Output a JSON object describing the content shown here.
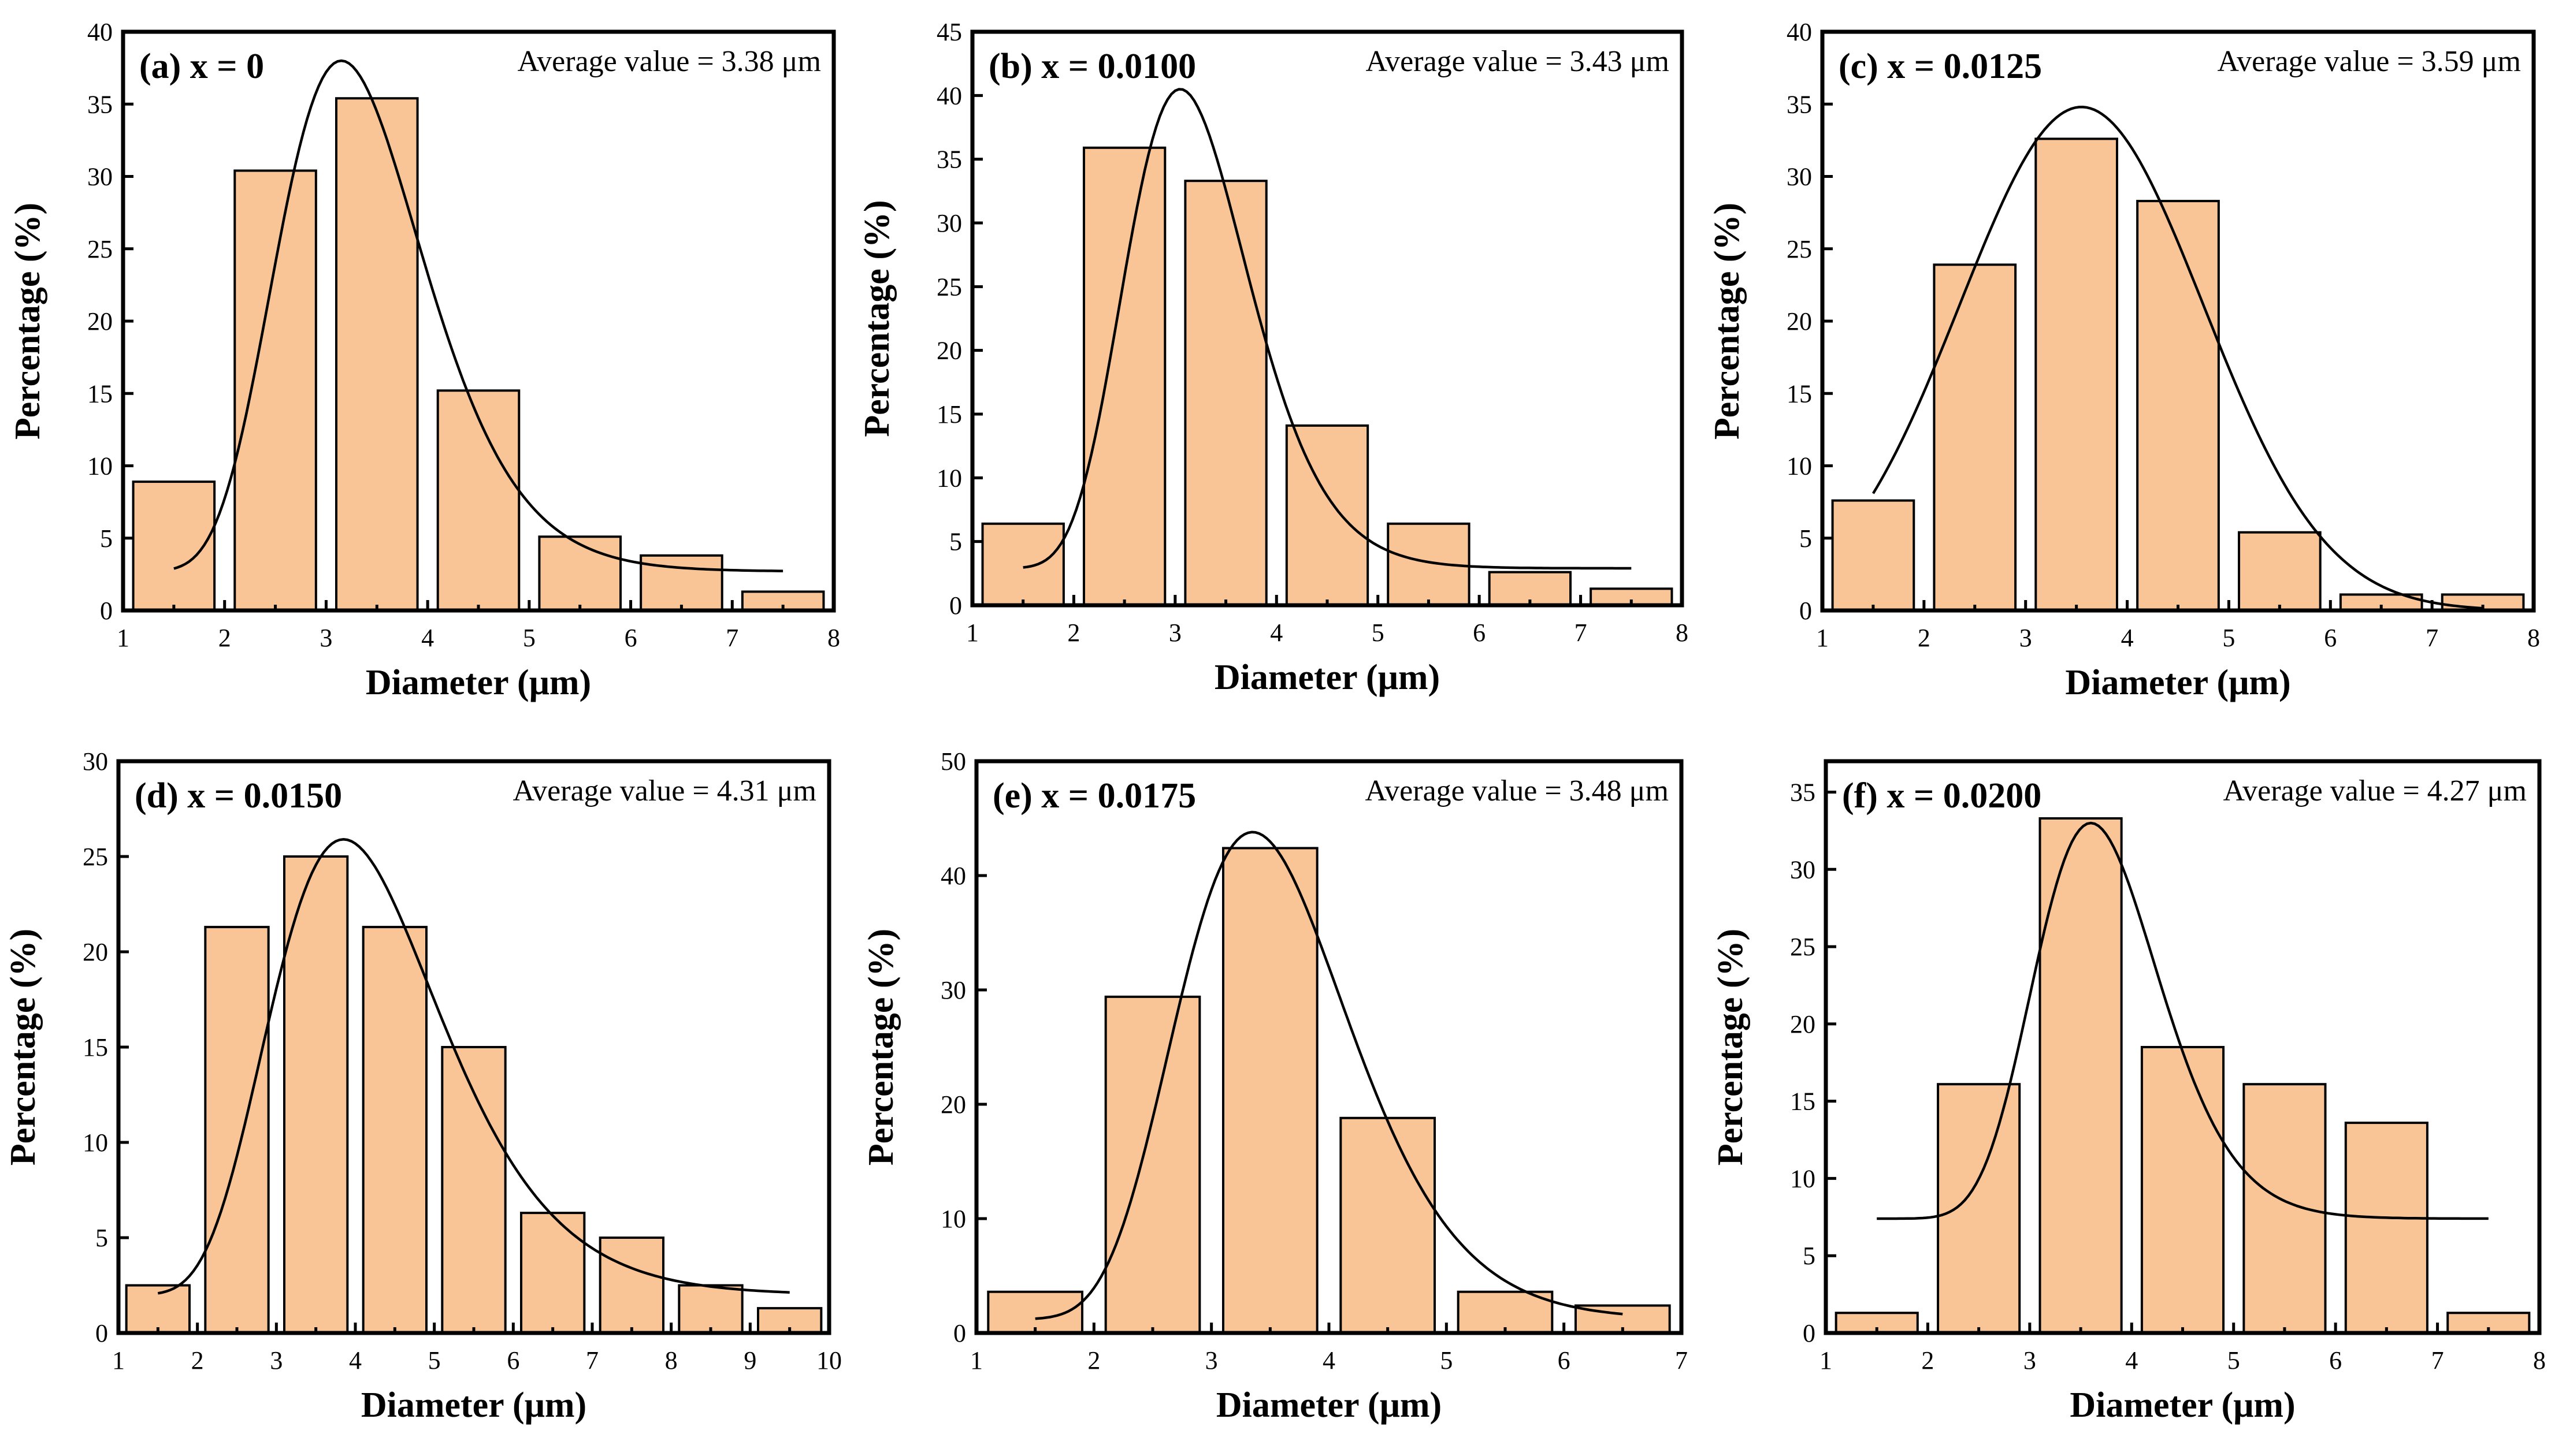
{
  "figure": {
    "bar_color": "#F9C597",
    "line_color": "#000000",
    "background": "#FFFFFF"
  },
  "chart_data": [
    {
      "type": "bar",
      "panel_label": "(a) x = 0",
      "average_text": "Average value = 3.38 μm",
      "xlabel": "Diameter (μm)",
      "ylabel": "Percentage (%)",
      "xlim": [
        1,
        8
      ],
      "ylim": [
        0,
        40
      ],
      "xticks": [
        1,
        2,
        3,
        4,
        5,
        6,
        7,
        8
      ],
      "yticks": [
        0,
        5,
        10,
        15,
        20,
        25,
        30,
        35,
        40
      ],
      "bin_width": 1,
      "bins": [
        [
          1,
          2
        ],
        [
          2,
          3
        ],
        [
          3,
          4
        ],
        [
          4,
          5
        ],
        [
          5,
          6
        ],
        [
          6,
          7
        ],
        [
          7,
          8
        ]
      ],
      "values": [
        8.9,
        30.4,
        35.4,
        15.2,
        5.1,
        3.8,
        1.3
      ],
      "fit_curve": {
        "type": "lognormal",
        "x_range": [
          1.5,
          7.5
        ],
        "baseline": 2.7,
        "peak_x": 3.15,
        "peak_y": 38,
        "sigma": 0.23
      }
    },
    {
      "type": "bar",
      "panel_label": "(b) x = 0.0100",
      "average_text": "Average value = 3.43 μm",
      "xlabel": "Diameter (μm)",
      "ylabel": "Percentage (%)",
      "xlim": [
        1,
        8
      ],
      "ylim": [
        0,
        45
      ],
      "xticks": [
        1,
        2,
        3,
        4,
        5,
        6,
        7,
        8
      ],
      "yticks": [
        0,
        5,
        10,
        15,
        20,
        25,
        30,
        35,
        40,
        45
      ],
      "bin_width": 1,
      "bins": [
        [
          1,
          2
        ],
        [
          2,
          3
        ],
        [
          3,
          4
        ],
        [
          4,
          5
        ],
        [
          5,
          6
        ],
        [
          6,
          7
        ],
        [
          7,
          8
        ]
      ],
      "values": [
        6.4,
        35.9,
        33.3,
        14.1,
        6.4,
        2.6,
        1.3
      ],
      "fit_curve": {
        "type": "lognormal",
        "x_range": [
          1.5,
          7.5
        ],
        "baseline": 2.9,
        "peak_x": 3.05,
        "peak_y": 40.5,
        "sigma": 0.2
      }
    },
    {
      "type": "bar",
      "panel_label": "(c) x = 0.0125",
      "average_text": "Average value = 3.59 μm",
      "xlabel": "Diameter (μm)",
      "ylabel": "Percentage (%)",
      "xlim": [
        1,
        8
      ],
      "ylim": [
        0,
        40
      ],
      "xticks": [
        1,
        2,
        3,
        4,
        5,
        6,
        7,
        8
      ],
      "yticks": [
        0,
        5,
        10,
        15,
        20,
        25,
        30,
        35,
        40
      ],
      "bin_width": 1,
      "bins": [
        [
          1,
          2
        ],
        [
          2,
          3
        ],
        [
          3,
          4
        ],
        [
          4,
          5
        ],
        [
          5,
          6
        ],
        [
          6,
          7
        ],
        [
          7,
          8
        ]
      ],
      "values": [
        7.6,
        23.9,
        32.6,
        28.3,
        5.4,
        1.1,
        1.1
      ],
      "fit_curve": {
        "type": "gauss",
        "x_range": [
          1.5,
          7.5
        ],
        "baseline": 0,
        "peak_x": 3.55,
        "peak_y": 34.8,
        "sigma": 1.2
      }
    },
    {
      "type": "bar",
      "panel_label": "(d) x = 0.0150",
      "average_text": "Average value = 4.31 μm",
      "xlabel": "Diameter (μm)",
      "ylabel": "Percentage (%)",
      "xlim": [
        1,
        10
      ],
      "ylim": [
        0,
        30
      ],
      "xticks": [
        1,
        2,
        3,
        4,
        5,
        6,
        7,
        8,
        9,
        10
      ],
      "yticks": [
        0,
        5,
        10,
        15,
        20,
        25,
        30
      ],
      "bin_width": 1,
      "bins": [
        [
          1,
          2
        ],
        [
          2,
          3
        ],
        [
          3,
          4
        ],
        [
          4,
          5
        ],
        [
          5,
          6
        ],
        [
          6,
          7
        ],
        [
          7,
          8
        ],
        [
          8,
          9
        ],
        [
          9,
          10
        ]
      ],
      "values": [
        2.5,
        21.3,
        25.0,
        21.3,
        15.0,
        6.3,
        5.0,
        2.5,
        1.3
      ],
      "fit_curve": {
        "type": "lognormal",
        "x_range": [
          1.5,
          9.5
        ],
        "baseline": 2.0,
        "peak_x": 3.85,
        "peak_y": 25.9,
        "sigma": 0.28
      }
    },
    {
      "type": "bar",
      "panel_label": "(e) x = 0.0175",
      "average_text": "Average value = 3.48 μm",
      "xlabel": "Diameter (μm)",
      "ylabel": "Percentage (%)",
      "xlim": [
        1,
        7
      ],
      "ylim": [
        0,
        50
      ],
      "xticks": [
        1,
        2,
        3,
        4,
        5,
        6,
        7
      ],
      "yticks": [
        0,
        10,
        20,
        30,
        40,
        50
      ],
      "bin_width": 1,
      "bins": [
        [
          1,
          2
        ],
        [
          2,
          3
        ],
        [
          3,
          4
        ],
        [
          4,
          5
        ],
        [
          5,
          6
        ],
        [
          6,
          7
        ]
      ],
      "values": [
        3.6,
        29.4,
        42.4,
        18.8,
        3.6,
        2.4
      ],
      "fit_curve": {
        "type": "lognormal",
        "x_range": [
          1.5,
          6.5
        ],
        "baseline": 1.2,
        "peak_x": 3.35,
        "peak_y": 43.8,
        "sigma": 0.22
      }
    },
    {
      "type": "bar",
      "panel_label": "(f) x = 0.0200",
      "average_text": "Average value = 4.27 μm",
      "xlabel": "Diameter (μm)",
      "ylabel": "Percentage (%)",
      "xlim": [
        1,
        8
      ],
      "ylim": [
        0,
        37
      ],
      "xticks": [
        1,
        2,
        3,
        4,
        5,
        6,
        7,
        8
      ],
      "yticks": [
        0,
        5,
        10,
        15,
        20,
        25,
        30,
        35
      ],
      "bin_width": 1,
      "bins": [
        [
          1,
          2
        ],
        [
          2,
          3
        ],
        [
          3,
          4
        ],
        [
          4,
          5
        ],
        [
          5,
          6
        ],
        [
          6,
          7
        ],
        [
          7,
          8
        ]
      ],
      "values": [
        1.3,
        16.1,
        33.3,
        18.5,
        16.1,
        13.6,
        1.3
      ],
      "fit_curve": {
        "type": "lognormal",
        "x_range": [
          1.5,
          7.5
        ],
        "baseline": 7.4,
        "peak_x": 3.6,
        "peak_y": 33,
        "sigma": 0.17
      }
    }
  ]
}
